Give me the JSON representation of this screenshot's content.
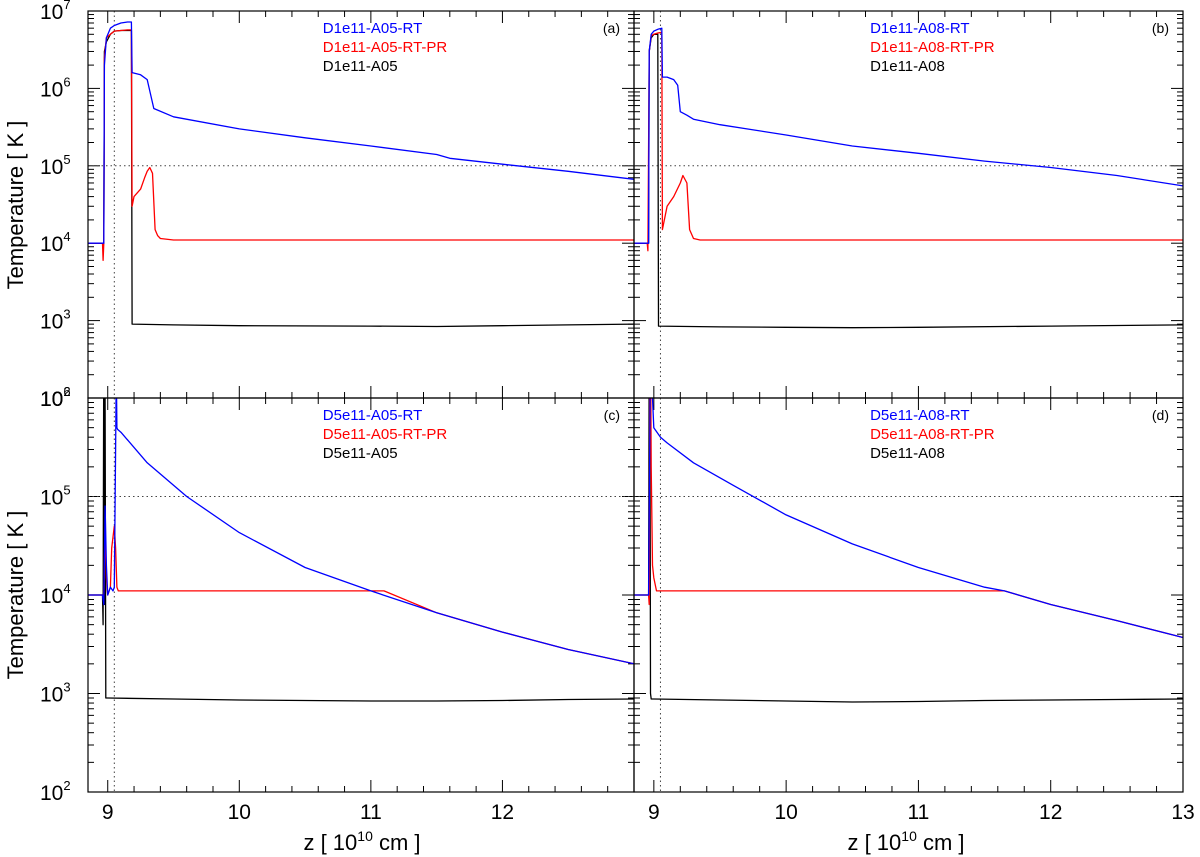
{
  "colors": {
    "rt": "#0000ff",
    "rt_pr": "#ff0000",
    "base": "#000000",
    "reference_line": "#444444"
  },
  "axes": {
    "xlabel_prefix": "z [ 10",
    "xlabel_exponent": "10",
    "xlabel_suffix": " cm ]",
    "ylabel": "Temperature [ K ]",
    "x_ticks_left": [
      "9",
      "10",
      "11",
      "12"
    ],
    "x_ticks_right": [
      "9",
      "10",
      "11",
      "12",
      "13"
    ],
    "y_ticks_top": [
      {
        "base": "10",
        "exp": "7"
      },
      {
        "base": "10",
        "exp": "6"
      },
      {
        "base": "10",
        "exp": "5"
      },
      {
        "base": "10",
        "exp": "4"
      },
      {
        "base": "10",
        "exp": "3"
      },
      {
        "base": "10",
        "exp": "2"
      }
    ],
    "y_ticks_bottom": [
      {
        "base": "10",
        "exp": "6"
      },
      {
        "base": "10",
        "exp": "5"
      },
      {
        "base": "10",
        "exp": "4"
      },
      {
        "base": "10",
        "exp": "3"
      },
      {
        "base": "10",
        "exp": "2"
      }
    ]
  },
  "chart_data": [
    {
      "panel": "(a)",
      "type": "line",
      "xlabel": "",
      "ylabel": "Temperature [ K ]",
      "xlim": [
        8.85,
        13.0
      ],
      "ylim": [
        100,
        10000000
      ],
      "log_y": true,
      "reference_lines": {
        "y": 100000,
        "x": 9.05
      },
      "legend_position": "top-center",
      "series": [
        {
          "name": "D1e11-A05-RT",
          "color": "#0000ff",
          "x": [
            8.85,
            8.97,
            8.975,
            8.99,
            9.02,
            9.05,
            9.1,
            9.15,
            9.18,
            9.185,
            9.25,
            9.3,
            9.35,
            9.5,
            10.0,
            10.5,
            11.0,
            11.5,
            11.6,
            12.0,
            12.5,
            13.0
          ],
          "y": [
            10000,
            10000,
            2000000,
            4500000,
            6000000,
            6500000,
            7000000,
            7200000,
            7200000,
            1600000,
            1500000,
            1300000,
            550000,
            430000,
            300000,
            230000,
            180000,
            140000,
            125000,
            105000,
            85000,
            67000
          ]
        },
        {
          "name": "D1e11-A05-RT-PR",
          "color": "#ff0000",
          "x": [
            8.85,
            8.96,
            8.965,
            8.97,
            8.975,
            8.99,
            9.02,
            9.05,
            9.1,
            9.15,
            9.18,
            9.185,
            9.2,
            9.25,
            9.28,
            9.3,
            9.32,
            9.34,
            9.36,
            9.38,
            9.4,
            9.5,
            10.0,
            11.0,
            12.0,
            13.0
          ],
          "y": [
            10000,
            10000,
            6000,
            10000,
            2500000,
            4500000,
            5000000,
            5500000,
            5600000,
            5700000,
            5700000,
            30000,
            40000,
            50000,
            70000,
            85000,
            95000,
            80000,
            15000,
            12500,
            11500,
            11000,
            11000,
            11000,
            11000,
            11000
          ]
        },
        {
          "name": "D1e11-A05",
          "color": "#000000",
          "x": [
            8.85,
            8.97,
            8.975,
            8.99,
            9.02,
            9.05,
            9.1,
            9.18,
            9.185,
            9.5,
            10.0,
            11.0,
            11.5,
            12.0,
            12.5,
            13.0
          ],
          "y": [
            10000,
            10000,
            3000000,
            4000000,
            5000000,
            5500000,
            5600000,
            5600000,
            900,
            880,
            860,
            850,
            840,
            860,
            880,
            900
          ]
        }
      ]
    },
    {
      "panel": "(b)",
      "type": "line",
      "xlabel": "",
      "ylabel": "",
      "xlim": [
        8.85,
        13.0
      ],
      "ylim": [
        100,
        10000000
      ],
      "log_y": true,
      "reference_lines": {
        "y": 100000,
        "x": 9.05
      },
      "legend_position": "top-center",
      "series": [
        {
          "name": "D1e11-A08-RT",
          "color": "#0000ff",
          "x": [
            8.85,
            8.96,
            8.965,
            8.98,
            9.0,
            9.03,
            9.06,
            9.065,
            9.1,
            9.15,
            9.18,
            9.2,
            9.25,
            9.3,
            9.5,
            10.0,
            10.5,
            11.0,
            11.5,
            12.0,
            12.5,
            13.0
          ],
          "y": [
            10000,
            10000,
            3000000,
            5000000,
            5500000,
            5800000,
            6000000,
            1400000,
            1400000,
            1300000,
            1100000,
            500000,
            450000,
            400000,
            340000,
            250000,
            180000,
            145000,
            115000,
            95000,
            75000,
            55000
          ]
        },
        {
          "name": "D1e11-A08-RT-PR",
          "color": "#ff0000",
          "x": [
            8.85,
            8.95,
            8.955,
            8.965,
            8.98,
            9.0,
            9.03,
            9.06,
            9.065,
            9.1,
            9.15,
            9.2,
            9.22,
            9.25,
            9.27,
            9.3,
            9.35,
            9.5,
            10.0,
            11.0,
            12.0,
            13.0
          ],
          "y": [
            10000,
            10000,
            8000,
            3000000,
            4800000,
            5000000,
            5200000,
            5300000,
            15000,
            30000,
            40000,
            60000,
            75000,
            60000,
            15000,
            11500,
            11000,
            11000,
            11000,
            11000,
            11000,
            11000
          ]
        },
        {
          "name": "D1e11-A08",
          "color": "#000000",
          "x": [
            8.85,
            8.96,
            8.965,
            8.98,
            9.0,
            9.03,
            9.035,
            9.5,
            10.0,
            10.5,
            11.0,
            12.0,
            13.0
          ],
          "y": [
            10000,
            10000,
            3000000,
            4500000,
            5000000,
            5000000,
            850,
            830,
            820,
            810,
            820,
            850,
            880
          ]
        }
      ]
    },
    {
      "panel": "(c)",
      "type": "line",
      "xlabel": "z [ 10^10 cm ]",
      "ylabel": "Temperature [ K ]",
      "xlim": [
        8.85,
        13.0
      ],
      "ylim": [
        100,
        1000000
      ],
      "log_y": true,
      "reference_lines": {
        "y": 100000,
        "x": 9.05
      },
      "legend_position": "top-center",
      "series": [
        {
          "name": "D5e11-A05-RT",
          "color": "#0000ff",
          "x": [
            8.85,
            8.96,
            8.97,
            8.98,
            8.99,
            9.0,
            9.02,
            9.04,
            9.05,
            9.06,
            9.065,
            9.07,
            9.075,
            9.1,
            9.3,
            9.6,
            10.0,
            10.5,
            11.0,
            11.5,
            12.0,
            12.5,
            13.0
          ],
          "y": [
            10000,
            10000,
            8000,
            80000,
            20000,
            10000,
            12000,
            11000,
            12000,
            300000,
            2000000,
            500000,
            480000,
            450000,
            220000,
            100000,
            43000,
            19000,
            11000,
            6600,
            4200,
            2800,
            2000
          ]
        },
        {
          "name": "D5e11-A05-RT-PR",
          "color": "#ff0000",
          "x": [
            8.85,
            8.96,
            8.97,
            8.98,
            8.99,
            9.0,
            9.02,
            9.03,
            9.05,
            9.06,
            9.07,
            9.08,
            9.2,
            10.0,
            11.0,
            11.1,
            11.5,
            12.0,
            12.5,
            13.0
          ],
          "y": [
            10000,
            10000,
            9000,
            50000,
            15000,
            10000,
            12000,
            30000,
            50000,
            30000,
            12000,
            11000,
            11000,
            11000,
            11000,
            11000,
            6600,
            4200,
            2800,
            2000
          ]
        },
        {
          "name": "D5e11-A05",
          "color": "#000000",
          "x": [
            8.85,
            8.96,
            8.965,
            8.97,
            8.975,
            8.98,
            8.985,
            9.0,
            9.5,
            10.0,
            10.5,
            11.0,
            11.5,
            12.0,
            12.5,
            13.0
          ],
          "y": [
            10000,
            10000,
            5000,
            4000000,
            8000,
            1000000,
            900,
            900,
            880,
            860,
            850,
            840,
            840,
            850,
            870,
            880
          ]
        }
      ]
    },
    {
      "panel": "(d)",
      "type": "line",
      "xlabel": "z [ 10^10 cm ]",
      "ylabel": "",
      "xlim": [
        8.85,
        13.0
      ],
      "ylim": [
        100,
        1000000
      ],
      "log_y": true,
      "reference_lines": {
        "y": 100000,
        "x": 9.05
      },
      "legend_position": "top-center",
      "series": [
        {
          "name": "D5e11-A08-RT",
          "color": "#0000ff",
          "x": [
            8.85,
            8.96,
            8.97,
            8.975,
            8.98,
            8.99,
            9.0,
            9.05,
            9.1,
            9.3,
            9.6,
            10.0,
            10.5,
            11.0,
            11.5,
            11.65,
            12.0,
            12.5,
            13.0
          ],
          "y": [
            10000,
            10000,
            500000,
            5000000,
            2000000,
            1000000,
            500000,
            400000,
            350000,
            220000,
            130000,
            65000,
            33000,
            19000,
            12000,
            11000,
            8000,
            5500,
            3700
          ]
        },
        {
          "name": "D5e11-A08-RT-PR",
          "color": "#ff0000",
          "x": [
            8.85,
            8.96,
            8.965,
            8.97,
            8.975,
            8.98,
            8.99,
            9.0,
            9.02,
            9.05,
            10.0,
            11.0,
            11.65,
            12.0,
            12.5,
            13.0
          ],
          "y": [
            10000,
            10000,
            8000,
            3000000,
            4500000,
            200000,
            20000,
            15000,
            11000,
            11000,
            11000,
            11000,
            11000,
            8000,
            5500,
            3700
          ]
        },
        {
          "name": "D5e11-A08",
          "color": "#000000",
          "x": [
            8.85,
            8.96,
            8.965,
            8.97,
            8.975,
            8.98,
            9.0,
            9.5,
            10.0,
            10.5,
            11.0,
            11.5,
            12.0,
            12.5,
            13.0
          ],
          "y": [
            10000,
            10000,
            3000000,
            2000000,
            1000,
            880,
            880,
            860,
            840,
            820,
            830,
            850,
            860,
            870,
            880
          ]
        }
      ]
    }
  ]
}
